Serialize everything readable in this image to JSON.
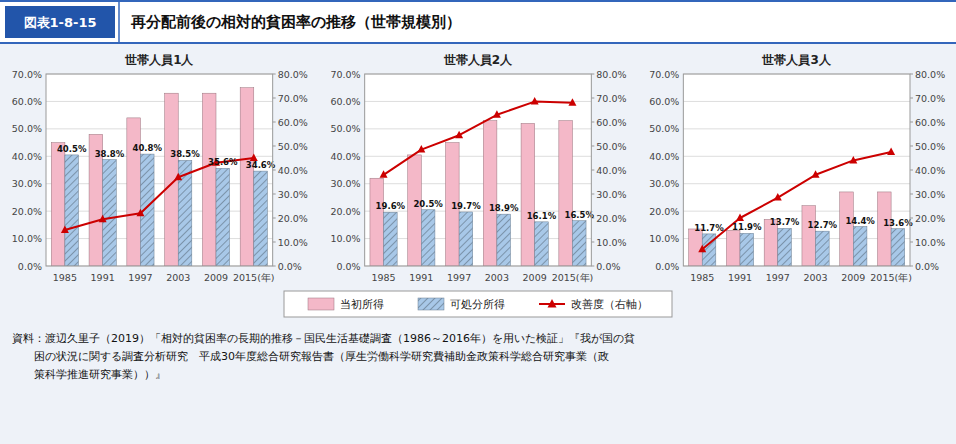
{
  "title": "再分配前後の相対的貧困率の推移（世帯規模別）",
  "subtitle": "図表1-8-15",
  "annotations": [
    "資料：渡辺久里子（2019）「相対的貧困率の長期的推移－国民生活基礎調査（1986～2016年）を用いた検証」『我が国の貧",
    "　　困の状況に関する調査分析研究　平成30年度総合研究報告書（厚生労働科学研究費補助金政策科学総合研究事業（政",
    "　　策科学推進研究事業））』"
  ],
  "chart_data": [
    {
      "type": "bar",
      "title": "世帯人員1人",
      "categories": [
        "1985",
        "1991",
        "1997",
        "2003",
        "2009",
        "2015(年)"
      ],
      "series": [
        {
          "name": "当初所得",
          "color": "#F4B8C8",
          "values": [
            45.0,
            48.0,
            54.0,
            63.0,
            63.0,
            65.0
          ]
        },
        {
          "name": "可処分所得",
          "color": "#A8C8E8",
          "values": [
            40.5,
            38.8,
            40.8,
            38.5,
            35.6,
            34.6
          ],
          "data_labels": true,
          "value_labels": [
            "40.5%",
            "38.8%",
            "40.8%",
            "38.5%",
            "35.6%",
            "34.6%"
          ]
        },
        {
          "name": "改善度（右軸）",
          "type": "line",
          "color": "#CC0000",
          "marker": "triangle",
          "axis": "y2",
          "values": [
            15.0,
            19.5,
            22.0,
            37.0,
            43.0,
            45.0
          ]
        }
      ],
      "ylim": [
        0,
        70
      ],
      "yticks": [
        {
          "value": 0,
          "label": "0.0%"
        },
        {
          "value": 10,
          "label": "10.0%"
        },
        {
          "value": 20,
          "label": "20.0%"
        },
        {
          "value": 30,
          "label": "30.0%"
        },
        {
          "value": 40,
          "label": "40.0%"
        },
        {
          "value": 50,
          "label": "50.0%"
        },
        {
          "value": 60,
          "label": "60.0%"
        },
        {
          "value": 70,
          "label": "70.0%"
        }
      ],
      "y2lim": [
        0,
        80
      ],
      "y2ticks": [
        {
          "value": 0,
          "label": "0.0%"
        },
        {
          "value": 10,
          "label": "10.0%"
        },
        {
          "value": 20,
          "label": "20.0%"
        },
        {
          "value": 30,
          "label": "30.0%"
        },
        {
          "value": 40,
          "label": "40.0%"
        },
        {
          "value": 50,
          "label": "50.0%"
        },
        {
          "value": 60,
          "label": "60.0%"
        },
        {
          "value": 70,
          "label": "70.0%"
        },
        {
          "value": 80,
          "label": "80.0%"
        }
      ],
      "grid": true,
      "legend": "bottom"
    },
    {
      "type": "bar",
      "title": "世帯人員2人",
      "categories": [
        "1985",
        "1991",
        "1997",
        "2003",
        "2009",
        "2015(年)"
      ],
      "series": [
        {
          "color": "#F4B8C8",
          "values": [
            32.0,
            40.5,
            45.0,
            53.0,
            52.0,
            53.0
          ]
        },
        {
          "color": "#A8C8E8",
          "values": [
            19.6,
            20.5,
            19.7,
            18.9,
            16.1,
            16.5
          ],
          "data_labels": true,
          "value_labels": [
            "19.6%",
            "20.5%",
            "19.7%",
            "18.9%",
            "16.1%",
            "16.5%"
          ]
        },
        {
          "type": "line",
          "color": "#CC0000",
          "marker": "triangle",
          "axis": "y2",
          "values": [
            38.0,
            48.5,
            54.5,
            63.0,
            68.5,
            68.0
          ]
        }
      ],
      "ylim": [
        0,
        70
      ],
      "yticks": [
        {
          "value": 0,
          "label": "0.0%"
        },
        {
          "value": 10,
          "label": "10.0%"
        },
        {
          "value": 20,
          "label": "20.0%"
        },
        {
          "value": 30,
          "label": "30.0%"
        },
        {
          "value": 40,
          "label": "40.0%"
        },
        {
          "value": 50,
          "label": "50.0%"
        },
        {
          "value": 60,
          "label": "60.0%"
        },
        {
          "value": 70,
          "label": "70.0%"
        }
      ],
      "y2lim": [
        0,
        80
      ],
      "y2ticks": [
        {
          "value": 0,
          "label": "0.0%"
        },
        {
          "value": 10,
          "label": "10.0%"
        },
        {
          "value": 20,
          "label": "20.0%"
        },
        {
          "value": 30,
          "label": "30.0%"
        },
        {
          "value": 40,
          "label": "40.0%"
        },
        {
          "value": 50,
          "label": "50.0%"
        },
        {
          "value": 60,
          "label": "60.0%"
        },
        {
          "value": 70,
          "label": "70.0%"
        },
        {
          "value": 80,
          "label": "80.0%"
        }
      ],
      "grid": true
    },
    {
      "type": "bar",
      "title": "世帯人員3人",
      "categories": [
        "1985",
        "1991",
        "1997",
        "2003",
        "2009",
        "2015(年)"
      ],
      "series": [
        {
          "color": "#F4B8C8",
          "values": [
            13.5,
            13.0,
            17.0,
            22.0,
            27.0,
            27.0
          ]
        },
        {
          "color": "#A8C8E8",
          "values": [
            11.7,
            11.9,
            13.7,
            12.7,
            14.4,
            13.6
          ],
          "data_labels": true,
          "value_labels": [
            "11.7%",
            "11.9%",
            "13.7%",
            "12.7%",
            "14.4%",
            "13.6%"
          ]
        },
        {
          "type": "line",
          "color": "#CC0000",
          "marker": "triangle",
          "axis": "y2",
          "values": [
            7.0,
            20.0,
            28.5,
            38.0,
            44.0,
            47.5
          ]
        }
      ],
      "ylim": [
        0,
        70
      ],
      "yticks": [
        {
          "value": 0,
          "label": "0.0%"
        },
        {
          "value": 10,
          "label": "10.0%"
        },
        {
          "value": 20,
          "label": "20.0%"
        },
        {
          "value": 30,
          "label": "30.0%"
        },
        {
          "value": 40,
          "label": "40.0%"
        },
        {
          "value": 50,
          "label": "50.0%"
        },
        {
          "value": 60,
          "label": "60.0%"
        },
        {
          "value": 70,
          "label": "70.0%"
        }
      ],
      "y2lim": [
        0,
        80
      ],
      "y2ticks": [
        {
          "value": 0,
          "label": "0.0%"
        },
        {
          "value": 10,
          "label": "10.0%"
        },
        {
          "value": 20,
          "label": "20.0%"
        },
        {
          "value": 30,
          "label": "30.0%"
        },
        {
          "value": 40,
          "label": "40.0%"
        },
        {
          "value": 50,
          "label": "50.0%"
        },
        {
          "value": 60,
          "label": "60.0%"
        },
        {
          "value": 70,
          "label": "70.0%"
        },
        {
          "value": 80,
          "label": "80.0%"
        }
      ],
      "grid": true
    }
  ]
}
